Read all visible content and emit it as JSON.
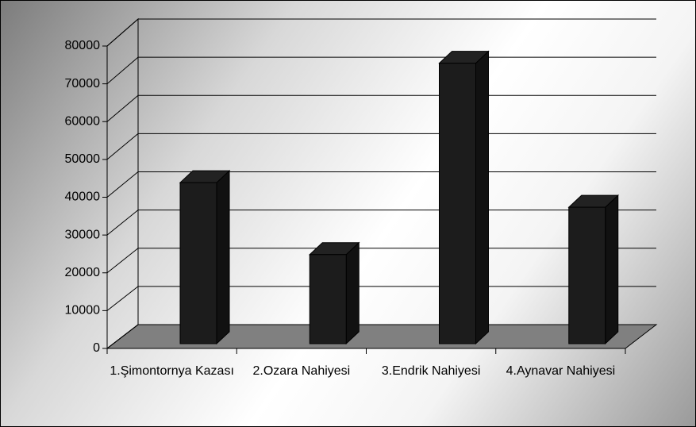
{
  "chart_data": {
    "type": "bar3d",
    "categories": [
      "1.Şimontornya Kazası",
      "2.Ozara Nahiyesi",
      "3.Endrik Nahiyesi",
      "4.Aynavar Nahiyesi"
    ],
    "values": [
      42500,
      23500,
      74000,
      36000
    ],
    "color": "#1c1c1c",
    "ylim": [
      0,
      80000
    ],
    "yticks": [
      0,
      10000,
      20000,
      30000,
      40000,
      50000,
      60000,
      70000,
      80000
    ],
    "grid": true
  }
}
